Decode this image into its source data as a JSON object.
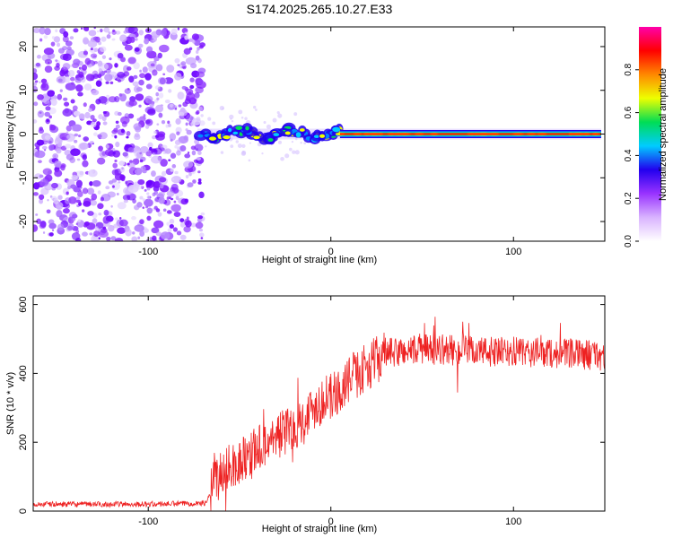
{
  "figure_title": "S174.2025.265.10.27.E33",
  "chart_data": [
    {
      "type": "heatmap",
      "title": "S174.2025.265.10.27.E33",
      "xlabel": "Height of straight line (km)",
      "ylabel": "Frequency (Hz)",
      "xlim": [
        -163,
        150
      ],
      "ylim": [
        -24.5,
        24.5
      ],
      "xticks": [
        -100,
        0,
        100
      ],
      "yticks": [
        -20,
        -10,
        0,
        10,
        20
      ],
      "noise_region_x": [
        -163,
        -73
      ],
      "signal_ridge": {
        "frequency_hz": 0,
        "start_km": -73,
        "end_km": 148,
        "unsteady_segment_km": [
          -73,
          -10
        ],
        "steady_segment_km": [
          5,
          148
        ]
      },
      "colorbar": {
        "label": "Normalized spectral amplitude",
        "range": [
          0,
          1
        ],
        "ticks": [
          "0.0",
          "0.2",
          "0.4",
          "0.6",
          "0.8"
        ],
        "tick_values": [
          0,
          0.2,
          0.4,
          0.6,
          0.8
        ],
        "colormap": [
          "#ffffff",
          "#d9b3ff",
          "#9933ff",
          "#2200ee",
          "#00ccff",
          "#00dd55",
          "#eeff00",
          "#ff8800",
          "#ff0000",
          "#ff00aa"
        ]
      }
    },
    {
      "type": "line",
      "xlabel": "Height of straight line (km)",
      "ylabel": "SNR (10 * v/v)",
      "xlim": [
        -163,
        150
      ],
      "ylim": [
        0,
        625
      ],
      "xticks": [
        -100,
        0,
        100
      ],
      "yticks": [
        0,
        200,
        400,
        600
      ],
      "series": [
        {
          "name": "SNR",
          "color": "#ee2222",
          "x": [
            -163,
            -140,
            -120,
            -100,
            -80,
            -68,
            -64,
            -60,
            -55,
            -50,
            -45,
            -40,
            -35,
            -30,
            -25,
            -20,
            -15,
            -10,
            -5,
            0,
            5,
            10,
            15,
            20,
            25,
            30,
            40,
            50,
            60,
            70,
            80,
            90,
            100,
            110,
            120,
            130,
            140,
            150
          ],
          "values": [
            20,
            20,
            20,
            20,
            22,
            24,
            80,
            110,
            130,
            140,
            170,
            180,
            200,
            220,
            230,
            250,
            260,
            300,
            320,
            330,
            350,
            380,
            400,
            420,
            440,
            455,
            465,
            470,
            470,
            465,
            465,
            460,
            462,
            460,
            460,
            455,
            455,
            450
          ]
        }
      ]
    }
  ]
}
